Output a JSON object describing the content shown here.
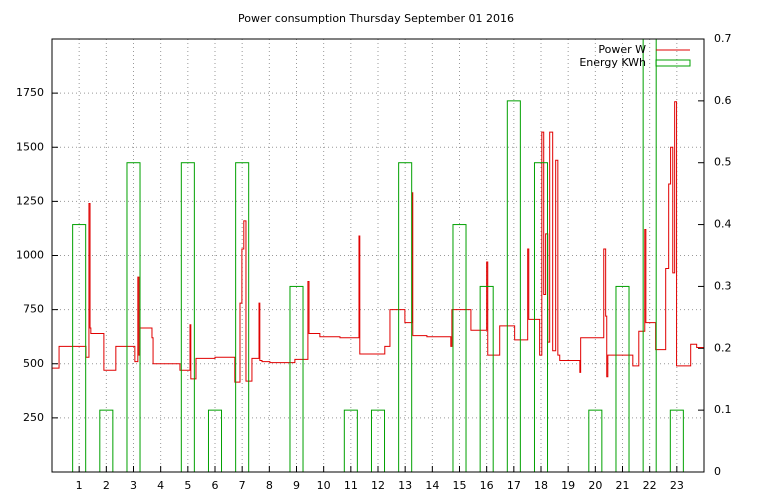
{
  "chart_data": {
    "type": "combo",
    "title": "Power consumption Thursday September 01 2016",
    "xlim": [
      0,
      24
    ],
    "xticks": [
      1,
      2,
      3,
      4,
      5,
      6,
      7,
      8,
      9,
      10,
      11,
      12,
      13,
      14,
      15,
      16,
      17,
      18,
      19,
      20,
      21,
      22,
      23
    ],
    "ylim": [
      0,
      2000
    ],
    "yticks": [
      250,
      500,
      750,
      1000,
      1250,
      1500,
      1750
    ],
    "y2lim": [
      0,
      0.7
    ],
    "y2ticks": [
      0,
      0.1,
      0.2,
      0.3,
      0.4,
      0.5,
      0.6,
      0.7
    ],
    "grid": true,
    "legend": "top-right",
    "series": [
      {
        "name": "Power W",
        "type": "step",
        "color": "#e00000",
        "x": [
          0,
          0.26,
          1.25,
          1.36,
          1.4,
          1.43,
          1.91,
          2.35,
          3.05,
          3.16,
          3.2,
          3.24,
          3.68,
          3.72,
          4.71,
          5.08,
          5.11,
          5.3,
          6.0,
          6.73,
          6.92,
          6.99,
          7.06,
          7.14,
          7.36,
          7.62,
          7.65,
          7.73,
          8.02,
          8.94,
          9.42,
          9.46,
          9.86,
          10.6,
          11.3,
          11.33,
          12.25,
          12.44,
          12.99,
          13.25,
          13.28,
          13.8,
          14.68,
          14.72,
          15.42,
          16.0,
          16.04,
          16.48,
          17.03,
          17.51,
          17.55,
          17.95,
          18.03,
          18.1,
          18.17,
          18.25,
          18.32,
          18.43,
          18.54,
          18.62,
          18.69,
          19.43,
          19.46,
          20.31,
          20.38,
          20.42,
          20.46,
          21.38,
          21.6,
          21.82,
          21.86,
          22.22,
          22.59,
          22.7,
          22.77,
          22.85,
          22.92,
          22.99,
          23.51,
          23.73,
          24
        ],
        "values": [
          480,
          580,
          530,
          1240,
          665,
          640,
          470,
          580,
          510,
          900,
          540,
          665,
          620,
          500,
          470,
          680,
          430,
          525,
          530,
          415,
          780,
          1030,
          1160,
          420,
          525,
          780,
          515,
          510,
          505,
          520,
          880,
          640,
          625,
          620,
          1090,
          545,
          580,
          750,
          690,
          1290,
          630,
          625,
          580,
          750,
          655,
          970,
          540,
          675,
          610,
          1030,
          705,
          540,
          1570,
          820,
          1100,
          600,
          1570,
          560,
          1440,
          540,
          515,
          460,
          620,
          1030,
          720,
          440,
          540,
          490,
          650,
          1120,
          690,
          565,
          940,
          1330,
          1500,
          920,
          1710,
          490,
          590,
          575,
          575
        ]
      },
      {
        "name": "Energy KWh",
        "type": "bar",
        "axis": "y2",
        "color": "#00a000",
        "x": [
          1,
          2,
          3,
          4,
          5,
          6,
          7,
          8,
          9,
          10,
          11,
          12,
          13,
          14,
          15,
          16,
          17,
          18,
          19,
          20,
          21,
          22,
          23
        ],
        "values": [
          0.4,
          0.1,
          0.5,
          0,
          0.5,
          0.1,
          0.5,
          0,
          0.3,
          0,
          0.1,
          0.1,
          0.5,
          0,
          0.4,
          0.3,
          0.6,
          0.5,
          0,
          0.1,
          0.3,
          0.7,
          0.1
        ]
      }
    ]
  }
}
